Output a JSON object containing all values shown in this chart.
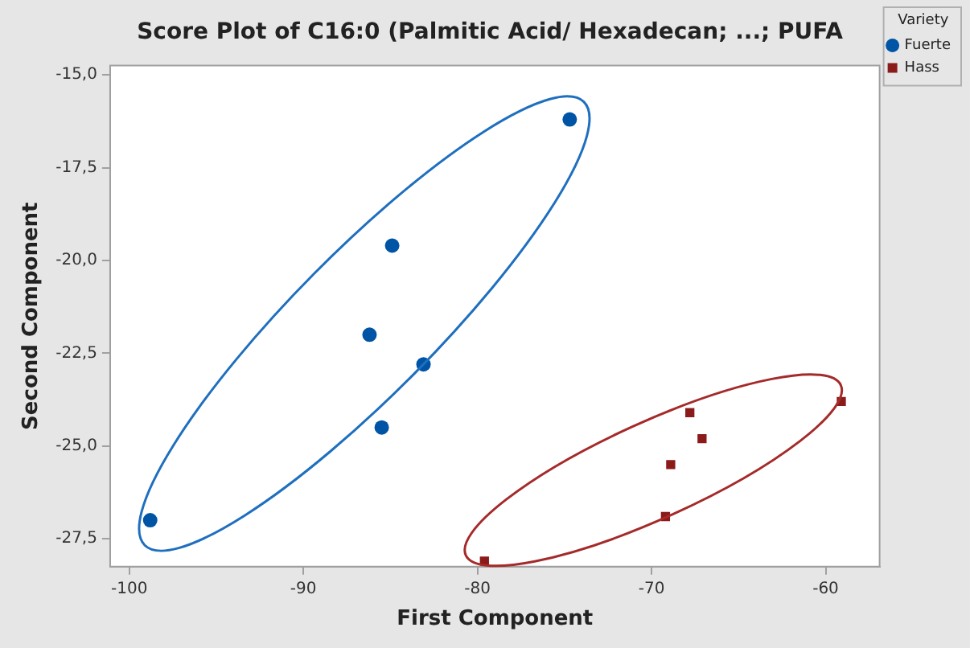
{
  "chart_data": {
    "type": "scatter",
    "title": "Score Plot of C16:0 (Palmitic Acid/ Hexadecan; ...; PUFA",
    "xlabel": "First Component",
    "ylabel": "Second Component",
    "legend_title": "Variety",
    "legend": "top right",
    "grid": false,
    "xlim": [
      -101.1,
      -56.9
    ],
    "xticks": [
      -100,
      -90,
      -80,
      -70,
      -60
    ],
    "ylim": [
      -28.25,
      -14.75
    ],
    "yticks": [
      {
        "value": -15,
        "label": "-15,0"
      },
      {
        "value": -17.5,
        "label": "-17,5"
      },
      {
        "value": -20,
        "label": "-20,0"
      },
      {
        "value": -22.5,
        "label": "-22,5"
      },
      {
        "value": -25,
        "label": "-25,0"
      },
      {
        "value": -27.5,
        "label": "-27,5"
      }
    ],
    "series": [
      {
        "name": "Fuerte",
        "color": "#0054a6",
        "marker": "circle",
        "x": [
          -74.7,
          -84.9,
          -86.2,
          -83.1,
          -85.5,
          -98.8
        ],
        "values": [
          -16.2,
          -19.6,
          -22.0,
          -22.8,
          -24.5,
          -27.0
        ]
      },
      {
        "name": "Hass",
        "color": "#8b1a1a",
        "marker": "square",
        "x": [
          -79.6,
          -69.2,
          -68.9,
          -67.8,
          -67.1,
          -59.1
        ],
        "values": [
          -28.1,
          -26.9,
          -25.5,
          -24.1,
          -24.8,
          -23.8
        ]
      }
    ]
  }
}
